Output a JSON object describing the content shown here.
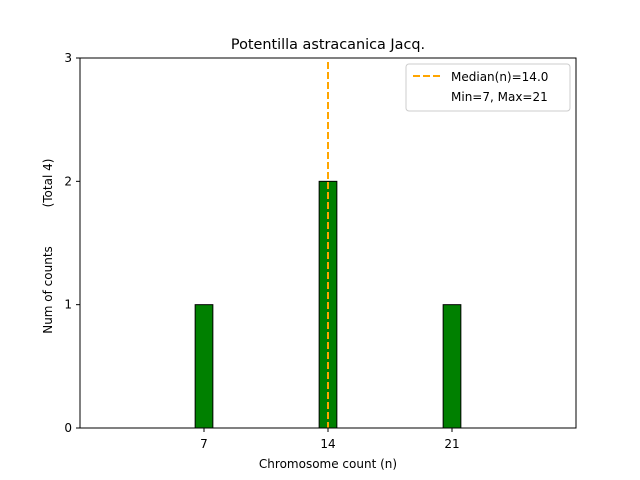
{
  "chart_data": {
    "type": "bar",
    "title": "Potentilla astracanica Jacq.",
    "xlabel": "Chromosome count (n)",
    "ylabel": "Num of counts",
    "ylabel_total": "(Total 4)",
    "x": [
      7,
      14,
      21
    ],
    "values": [
      1,
      2,
      1
    ],
    "bar_color": "#008000",
    "bar_edge_color": "#000000",
    "bar_width": 1,
    "xlim": [
      0,
      28
    ],
    "ylim": [
      0,
      3
    ],
    "xticks": [
      7,
      14,
      21
    ],
    "yticks": [
      0,
      1,
      2,
      3
    ],
    "median": 14.0,
    "median_color": "#FFA500",
    "legend": {
      "placement": "top-right",
      "entries": [
        "Median(n)=14.0",
        "Min=7, Max=21"
      ]
    },
    "grid": false
  }
}
